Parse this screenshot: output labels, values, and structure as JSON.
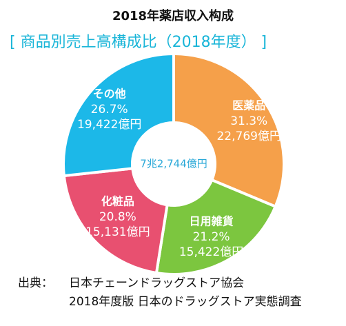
{
  "title": "2018年薬店収入构成",
  "subtitle": "[ 商品別売上高構成比（2018年度） ]",
  "chart_data": {
    "type": "pie",
    "donut": true,
    "total_label": "7兆2,744億円",
    "start_angle_deg": 0,
    "direction": "clockwise",
    "slices": [
      {
        "name": "医薬品",
        "percent_label": "31.3%",
        "value": 31.3,
        "amount_label": "22,769億円",
        "amount": 22769,
        "color": "#f5a04a"
      },
      {
        "name": "日用雑貨",
        "percent_label": "21.2%",
        "value": 21.2,
        "amount_label": "15,422億円",
        "amount": 15422,
        "color": "#7cc63f"
      },
      {
        "name": "化粧品",
        "percent_label": "20.8%",
        "value": 20.8,
        "amount_label": "15,131億円",
        "amount": 15131,
        "color": "#e85070"
      },
      {
        "name": "その他",
        "percent_label": "26.7%",
        "value": 26.7,
        "amount_label": "19,422億円",
        "amount": 19422,
        "color": "#1cb8e8"
      }
    ]
  },
  "source": {
    "prefix": "出典：",
    "line1": "日本チェーンドラッグストア協会",
    "line2": "2018年度版 日本のドラッグストア実態調査"
  },
  "colors": {
    "center_text": "#29a8d8",
    "slice_text": "#ffffff",
    "subtitle": "#19b5d8"
  }
}
